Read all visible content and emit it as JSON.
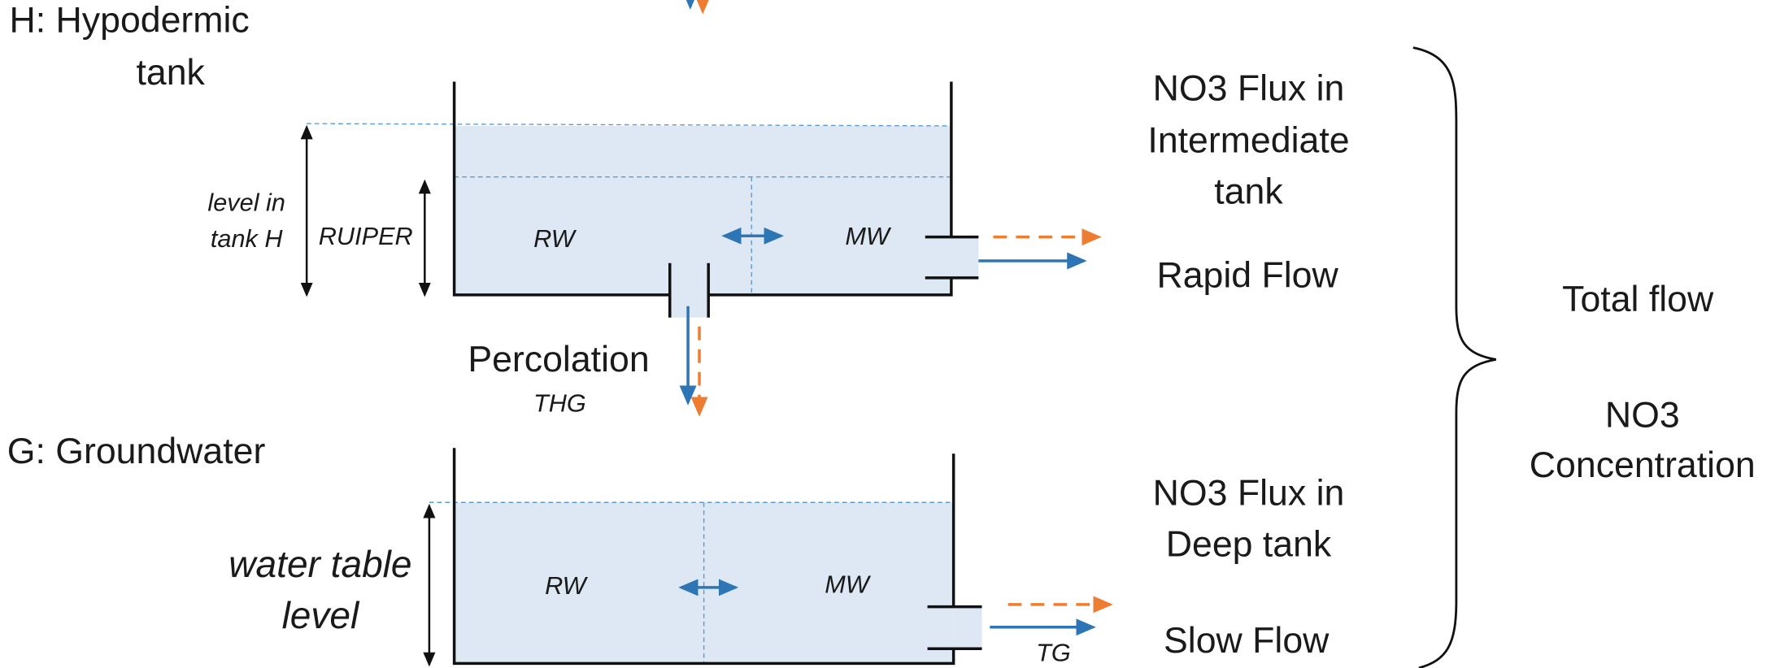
{
  "hypodermic": {
    "title": [
      "H: Hypodermic",
      "tank"
    ],
    "level": [
      "level in",
      "tank H"
    ],
    "ruiper": "RUIPER",
    "rw": "RW",
    "mw": "MW",
    "flux": [
      "NO3 Flux in",
      "Intermediate",
      "tank"
    ],
    "flow": "Rapid Flow"
  },
  "percolation": {
    "label": "Percolation",
    "code": "THG"
  },
  "groundwater": {
    "title": "G: Groundwater",
    "level": [
      "water table",
      "level"
    ],
    "rw": "RW",
    "mw": "MW",
    "flux": [
      "NO3 Flux in",
      "Deep tank"
    ],
    "flow": "Slow Flow",
    "code": "TG"
  },
  "outputs": {
    "total": "Total flow",
    "concentration": [
      "NO3",
      "Concentration"
    ]
  }
}
